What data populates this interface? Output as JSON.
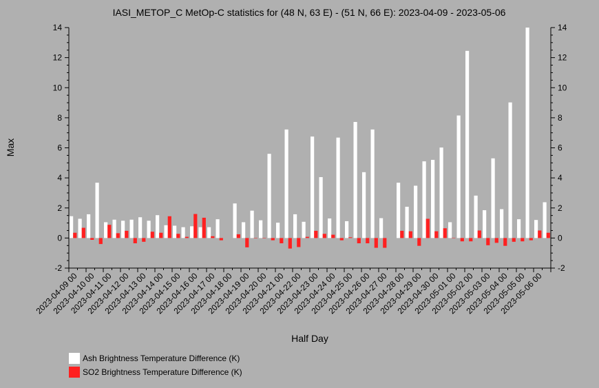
{
  "chart_data": {
    "type": "bar",
    "title": "IASI_METOP_C MetOp-C statistics for (48 N, 63 E) - (51 N, 66 E): 2023-04-09 - 2023-05-06",
    "xlabel": "Half Day",
    "ylabel": "Max",
    "ylim": [
      -2,
      14
    ],
    "yticks": [
      "-2",
      "0",
      "2",
      "4",
      "6",
      "8",
      "10",
      "12",
      "14"
    ],
    "categories": [
      "2023-04-09 00",
      "2023-04-09 12",
      "2023-04-10 00",
      "2023-04-10 12",
      "2023-04-11 00",
      "2023-04-11 12",
      "2023-04-12 00",
      "2023-04-12 12",
      "2023-04-13 00",
      "2023-04-13 12",
      "2023-04-14 00",
      "2023-04-14 12",
      "2023-04-15 00",
      "2023-04-15 12",
      "2023-04-16 00",
      "2023-04-16 12",
      "2023-04-17 00",
      "2023-04-17 12",
      "2023-04-18 00",
      "2023-04-18 12",
      "2023-04-19 00",
      "2023-04-19 12",
      "2023-04-20 00",
      "2023-04-20 12",
      "2023-04-21 00",
      "2023-04-21 12",
      "2023-04-22 00",
      "2023-04-22 12",
      "2023-04-23 00",
      "2023-04-23 12",
      "2023-04-24 00",
      "2023-04-24 12",
      "2023-04-25 00",
      "2023-04-25 12",
      "2023-04-26 00",
      "2023-04-26 12",
      "2023-04-27 00",
      "2023-04-27 12",
      "2023-04-28 00",
      "2023-04-28 12",
      "2023-04-29 00",
      "2023-04-29 12",
      "2023-04-30 00",
      "2023-04-30 12",
      "2023-05-01 00",
      "2023-05-01 12",
      "2023-05-02 00",
      "2023-05-02 12",
      "2023-05-03 00",
      "2023-05-03 12",
      "2023-05-04 00",
      "2023-05-04 12",
      "2023-05-05 00",
      "2023-05-05 12",
      "2023-05-06 00",
      "2023-05-06 12"
    ],
    "xticklabels": [
      "2023-04-09 00",
      "2023-04-10 00",
      "2023-04-11 00",
      "2023-04-12 00",
      "2023-04-13 00",
      "2023-04-14 00",
      "2023-04-15 00",
      "2023-04-16 00",
      "2023-04-17 00",
      "2023-04-18 00",
      "2023-04-19 00",
      "2023-04-20 00",
      "2023-04-21 00",
      "2023-04-22 00",
      "2023-04-23 00",
      "2023-04-24 00",
      "2023-04-25 00",
      "2023-04-26 00",
      "2023-04-27 00",
      "2023-04-28 00",
      "2023-04-29 00",
      "2023-04-30 00",
      "2023-05-01 00",
      "2023-05-02 00",
      "2023-05-03 00",
      "2023-05-04 00",
      "2023-05-05 00",
      "2023-05-06 00"
    ],
    "series": [
      {
        "name": "Ash Brightness Temperature Difference (K)",
        "color": "#ffffff",
        "values": [
          1.45,
          1.28,
          1.58,
          3.68,
          1.05,
          1.22,
          1.15,
          1.22,
          1.38,
          1.15,
          1.52,
          0.85,
          0.82,
          0.72,
          0.78,
          0.72,
          0.72,
          1.25,
          null,
          2.3,
          1.05,
          1.82,
          1.18,
          5.6,
          1.02,
          7.22,
          1.58,
          1.08,
          6.75,
          4.05,
          1.3,
          6.68,
          1.12,
          7.72,
          4.38,
          7.22,
          1.32,
          null,
          3.68,
          2.08,
          3.48,
          5.1,
          5.2,
          6.02,
          1.05,
          8.15,
          12.45,
          2.82,
          1.85,
          5.3,
          1.92,
          9.02,
          1.25,
          14.0,
          1.2,
          2.38
        ]
      },
      {
        "name": "SO2 Brightness Temperature Difference (K)",
        "color": "#ff2020",
        "values": [
          0.35,
          0.68,
          -0.12,
          -0.4,
          0.88,
          0.32,
          0.48,
          -0.35,
          -0.25,
          0.42,
          0.35,
          1.45,
          0.28,
          0.08,
          1.6,
          1.35,
          0.12,
          -0.15,
          null,
          0.25,
          -0.62,
          0.0,
          0.0,
          -0.15,
          -0.35,
          -0.7,
          -0.6,
          0.08,
          0.48,
          0.28,
          0.22,
          -0.15,
          0.05,
          -0.35,
          -0.35,
          -0.65,
          -0.65,
          null,
          0.48,
          0.45,
          -0.52,
          1.28,
          0.45,
          0.65,
          0.02,
          -0.22,
          -0.22,
          0.5,
          -0.48,
          -0.32,
          -0.52,
          -0.25,
          -0.22,
          -0.15,
          0.5,
          0.35
        ]
      }
    ],
    "legend_placement": "bottom-left",
    "grid": false
  }
}
